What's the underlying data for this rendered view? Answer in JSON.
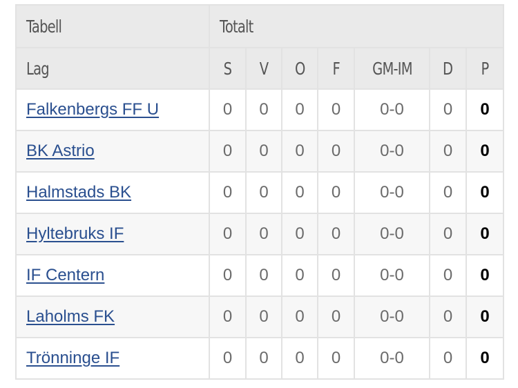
{
  "table": {
    "header_title": "Tabell",
    "header_group": "Totalt",
    "columns": {
      "team": "Lag",
      "s": "S",
      "v": "V",
      "o": "O",
      "f": "F",
      "gmim": "GM-IM",
      "d": "D",
      "p": "P"
    },
    "rows": [
      {
        "team": "Falkenbergs FF U",
        "s": "0",
        "v": "0",
        "o": "0",
        "f": "0",
        "gmim": "0-0",
        "d": "0",
        "p": "0"
      },
      {
        "team": "BK Astrio",
        "s": "0",
        "v": "0",
        "o": "0",
        "f": "0",
        "gmim": "0-0",
        "d": "0",
        "p": "0"
      },
      {
        "team": "Halmstads BK",
        "s": "0",
        "v": "0",
        "o": "0",
        "f": "0",
        "gmim": "0-0",
        "d": "0",
        "p": "0"
      },
      {
        "team": "Hyltebruks IF",
        "s": "0",
        "v": "0",
        "o": "0",
        "f": "0",
        "gmim": "0-0",
        "d": "0",
        "p": "0"
      },
      {
        "team": "IF Centern",
        "s": "0",
        "v": "0",
        "o": "0",
        "f": "0",
        "gmim": "0-0",
        "d": "0",
        "p": "0"
      },
      {
        "team": "Laholms FK",
        "s": "0",
        "v": "0",
        "o": "0",
        "f": "0",
        "gmim": "0-0",
        "d": "0",
        "p": "0"
      },
      {
        "team": "Trönninge IF",
        "s": "0",
        "v": "0",
        "o": "0",
        "f": "0",
        "gmim": "0-0",
        "d": "0",
        "p": "0"
      }
    ]
  },
  "colors": {
    "header_bg": "#eaeaea",
    "link": "#2a4f8f",
    "border": "#e2e2e2"
  }
}
